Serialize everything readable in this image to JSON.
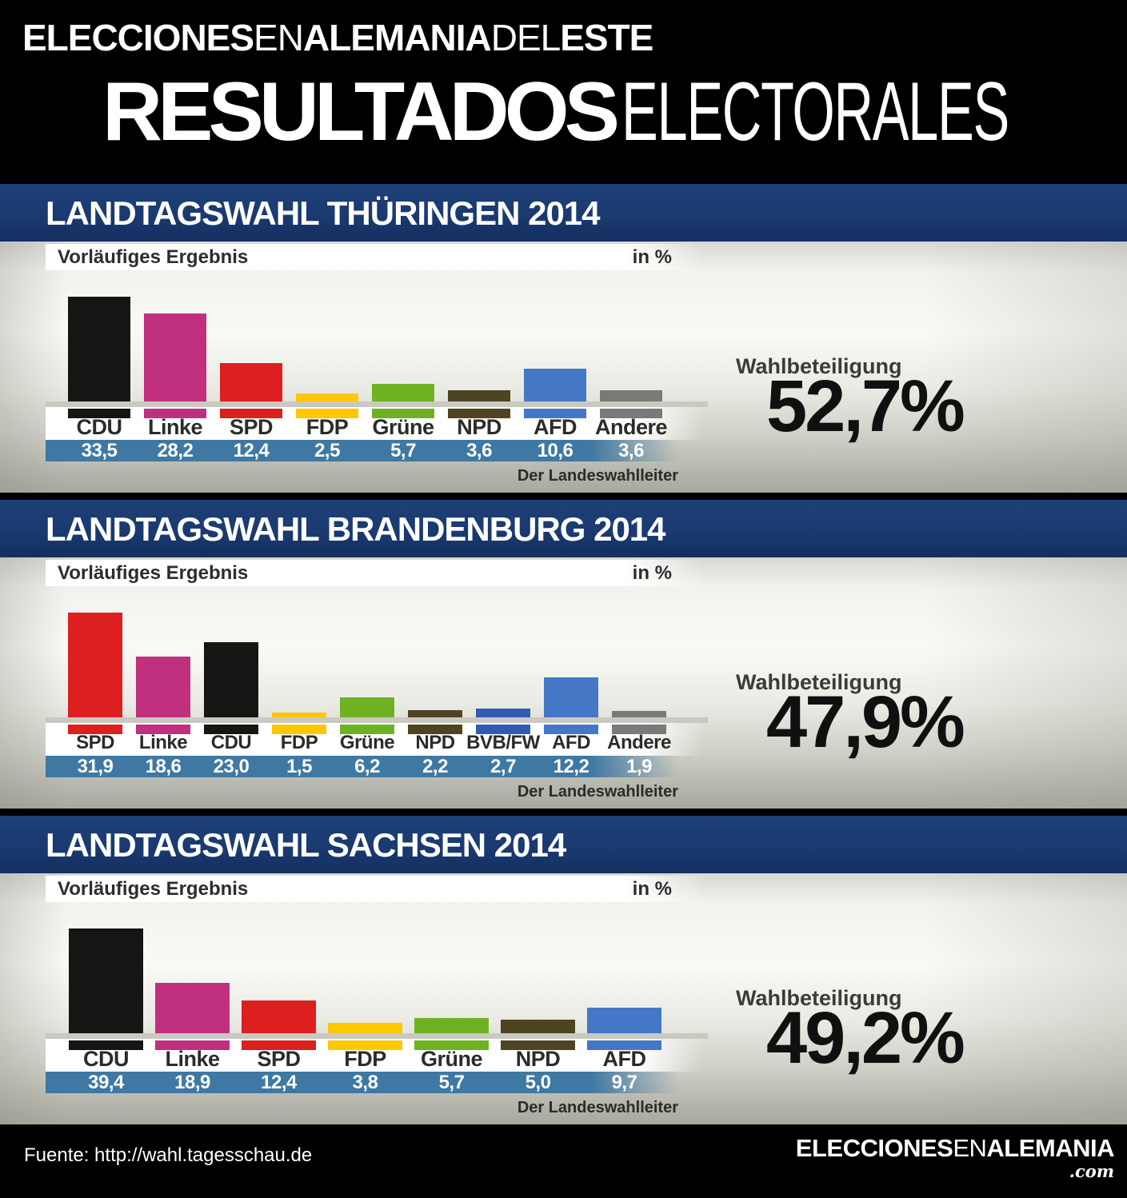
{
  "header": {
    "line1_seg1": "ELECCIONES",
    "line1_seg2": "EN",
    "line1_seg3": "ALEMANIA",
    "line1_seg4": "DEL",
    "line1_seg5": "ESTE",
    "line2_bold": "RESULTADOS",
    "line2_light": "ELECTORALES"
  },
  "chart_data": [
    {
      "type": "bar",
      "title": "LANDTAGSWAHL THÜRINGEN 2014",
      "subtitle_left": "Vorläufiges Ergebnis",
      "unit_label": "in %",
      "credit": "Der Landeswahlleiter",
      "turnout_label": "Wahlbeteiligung",
      "turnout_value": "52,7%",
      "categories": [
        "CDU",
        "Linke",
        "SPD",
        "FDP",
        "Grüne",
        "NPD",
        "AFD",
        "Andere"
      ],
      "values": [
        33.5,
        28.2,
        12.4,
        2.5,
        5.7,
        3.6,
        10.6,
        3.6
      ],
      "value_labels": [
        "33,5",
        "28,2",
        "12,4",
        "2,5",
        "5,7",
        "3,6",
        "10,6",
        "3,6"
      ],
      "colors": [
        "#171513",
        "#c0307e",
        "#dd1f1f",
        "#fdc800",
        "#6eb221",
        "#4e4322",
        "#4478c6",
        "#797979"
      ],
      "xlabel": "",
      "ylabel": "",
      "ylim": [
        0,
        35
      ],
      "grid": false,
      "legend": "none"
    },
    {
      "type": "bar",
      "title": "LANDTAGSWAHL BRANDENBURG 2014",
      "subtitle_left": "Vorläufiges Ergebnis",
      "unit_label": "in %",
      "credit": "Der Landeswahlleiter",
      "turnout_label": "Wahlbeteiligung",
      "turnout_value": "47,9%",
      "categories": [
        "SPD",
        "Linke",
        "CDU",
        "FDP",
        "Grüne",
        "NPD",
        "BVB/FW",
        "AFD",
        "Andere"
      ],
      "values": [
        31.9,
        18.6,
        23.0,
        1.5,
        6.2,
        2.2,
        2.7,
        12.2,
        1.9
      ],
      "value_labels": [
        "31,9",
        "18,6",
        "23,0",
        "1,5",
        "6,2",
        "2,2",
        "2,7",
        "12,2",
        "1,9"
      ],
      "colors": [
        "#dd1f1f",
        "#c0307e",
        "#171513",
        "#fdc800",
        "#6eb221",
        "#4e4322",
        "#2f5cb2",
        "#4478c6",
        "#797979"
      ],
      "xlabel": "",
      "ylabel": "",
      "ylim": [
        0,
        35
      ],
      "grid": false,
      "legend": "none"
    },
    {
      "type": "bar",
      "title": "LANDTAGSWAHL SACHSEN 2014",
      "subtitle_left": "Vorläufiges Ergebnis",
      "unit_label": "in %",
      "credit": "Der Landeswahlleiter",
      "turnout_label": "Wahlbeteiligung",
      "turnout_value": "49,2%",
      "categories": [
        "CDU",
        "Linke",
        "SPD",
        "FDP",
        "Grüne",
        "NPD",
        "AFD"
      ],
      "values": [
        39.4,
        18.9,
        12.4,
        3.8,
        5.7,
        5.0,
        9.7
      ],
      "value_labels": [
        "39,4",
        "18,9",
        "12,4",
        "3,8",
        "5,7",
        "5,0",
        "9,7"
      ],
      "colors": [
        "#171513",
        "#c0307e",
        "#dd1f1f",
        "#fdc800",
        "#6eb221",
        "#4e4322",
        "#4478c6"
      ],
      "xlabel": "",
      "ylabel": "",
      "ylim": [
        0,
        40
      ],
      "grid": false,
      "legend": "none"
    }
  ],
  "footer": {
    "source": "Fuente: http://wahl.tagesschau.de",
    "brand_seg1": "ELECCIONES",
    "brand_seg2": "EN",
    "brand_seg3": "ALEMANIA",
    "brand_tld": ".com"
  },
  "colors": {
    "panel_title_bg": "#1a3a70",
    "value_strip_bg": "#3f78a3",
    "axis_band": "#c9c9c1",
    "background": "#000000"
  }
}
